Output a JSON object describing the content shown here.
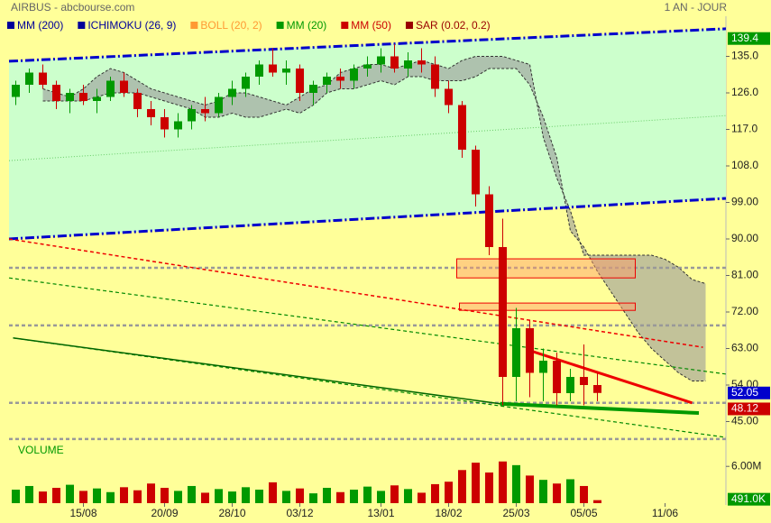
{
  "chart_data": {
    "type": "candlestick",
    "title": "AIRBUS - abcbourse.com",
    "period": "1 AN - JOUR",
    "indicators": [
      {
        "name": "MM (200)",
        "color": "#000099"
      },
      {
        "name": "ICHIMOKU (26, 9)",
        "color": "#000099"
      },
      {
        "name": "BOLL (20, 2)",
        "color": "#ff9933"
      },
      {
        "name": "MM (20)",
        "color": "#009900"
      },
      {
        "name": "MM (50)",
        "color": "#cc0000"
      },
      {
        "name": "SAR (0.02, 0.2)",
        "color": "#990000"
      }
    ],
    "categories": [
      null,
      null,
      null,
      null,
      null,
      "15/08",
      null,
      null,
      null,
      null,
      null,
      "20/09",
      null,
      null,
      null,
      null,
      "28/10",
      null,
      null,
      null,
      null,
      "03/12",
      null,
      null,
      null,
      null,
      null,
      "13/01",
      null,
      null,
      null,
      null,
      "18/02",
      null,
      null,
      null,
      null,
      "25/03",
      null,
      null,
      null,
      null,
      "05/05",
      null,
      null,
      null,
      null,
      null,
      "11/06",
      null,
      null,
      null,
      null
    ],
    "open": [
      125,
      128,
      131,
      128,
      124,
      126,
      124,
      125,
      129,
      126,
      122,
      120,
      117,
      119,
      122,
      121,
      125,
      127,
      130,
      133,
      131,
      132,
      126,
      128,
      130,
      129,
      132,
      133,
      135,
      132,
      134,
      133,
      127,
      123,
      112,
      101,
      88,
      56,
      68,
      57,
      60,
      52,
      56,
      54,
      null,
      null,
      null,
      null,
      null,
      null,
      null,
      null,
      null
    ],
    "high": [
      129,
      132,
      133,
      129,
      127,
      128,
      127,
      130,
      131,
      127,
      124,
      122,
      121,
      123,
      125,
      126,
      129,
      131,
      134,
      137,
      134,
      133,
      129,
      131,
      132,
      133,
      135,
      137,
      138,
      136,
      137,
      135,
      129,
      124,
      113,
      103,
      95,
      73,
      70,
      63,
      62,
      58,
      64,
      57,
      null,
      null,
      null,
      null,
      null,
      null,
      null,
      null,
      null
    ],
    "low": [
      123,
      126,
      127,
      122,
      121,
      123,
      121,
      124,
      125,
      120,
      118,
      115,
      115,
      117,
      119,
      120,
      123,
      125,
      128,
      130,
      128,
      124,
      123,
      126,
      127,
      127,
      130,
      131,
      131,
      130,
      131,
      125,
      121,
      110,
      98,
      86,
      49,
      50,
      51,
      50,
      49,
      50,
      49,
      50,
      null,
      null,
      null,
      null,
      null,
      null,
      null,
      null,
      null
    ],
    "close": [
      128,
      131,
      128,
      124,
      126,
      124,
      125,
      129,
      126,
      122,
      120,
      117,
      119,
      122,
      121,
      125,
      127,
      130,
      133,
      131,
      132,
      126,
      128,
      130,
      129,
      132,
      133,
      135,
      132,
      134,
      133,
      127,
      123,
      112,
      101,
      88,
      56,
      68,
      57,
      60,
      52,
      56,
      54,
      52.05,
      null,
      null,
      null,
      null,
      null,
      null,
      null,
      null,
      null
    ],
    "up_color": "#009900",
    "down_color": "#cc0000",
    "span_a": [
      null,
      null,
      127,
      126,
      125,
      127,
      130,
      132,
      131,
      129,
      127,
      126,
      125,
      124,
      123,
      124,
      126,
      126,
      125,
      124,
      123,
      125,
      127,
      128,
      131,
      132,
      133,
      133,
      132,
      133,
      134,
      133,
      132,
      134,
      135,
      135,
      135,
      134,
      133,
      115,
      105,
      97,
      86,
      86,
      86,
      86,
      86,
      86,
      85,
      83,
      80,
      79,
      null
    ],
    "span_b": [
      null,
      null,
      124,
      124,
      124,
      124,
      125,
      126,
      126,
      126,
      125,
      124,
      123,
      122,
      120,
      120,
      121,
      120,
      120,
      121,
      122,
      121,
      123,
      126,
      127,
      127,
      128,
      129,
      128,
      130,
      130,
      129,
      129,
      129,
      130,
      132,
      132,
      132,
      128,
      120,
      110,
      92,
      88,
      82,
      77,
      72,
      67,
      63,
      60,
      57,
      55,
      55,
      null
    ],
    "cloud_color": "#999999",
    "trend_lines": [
      {
        "color": "#0000cc",
        "style": "dashdot",
        "width": 3,
        "x": [
          -0.5,
          52.5
        ],
        "values": [
          133.8,
          141.8
        ]
      },
      {
        "color": "#0000cc",
        "style": "dashdot",
        "width": 3,
        "x": [
          -0.5,
          52.5
        ],
        "values": [
          90,
          100
        ]
      },
      {
        "color": "#66cc66",
        "style": "dotted",
        "width": 1,
        "x": [
          -0.5,
          52.5
        ],
        "values": [
          109.3,
          120.4
        ]
      },
      {
        "color": "#ee0000",
        "style": "dashed",
        "width": 1.5,
        "x": [
          -0.5,
          50.8
        ],
        "values": [
          90,
          63.3
        ]
      },
      {
        "color": "#008800",
        "style": "dashed",
        "width": 1.2,
        "x": [
          -0.5,
          52.5
        ],
        "values": [
          80.4,
          56.7
        ]
      },
      {
        "color": "#008800",
        "style": "dashed",
        "width": 1.2,
        "x": [
          -0.2,
          52.5
        ],
        "values": [
          65.6,
          41.1
        ]
      },
      {
        "color": "#006600",
        "style": "solid",
        "width": 1.5,
        "x": [
          -0.2,
          35.8
        ],
        "values": [
          65.6,
          49.4
        ]
      },
      {
        "color": "#009900",
        "style": "solid",
        "width": 4,
        "x": [
          35.8,
          50.5
        ],
        "values": [
          49.4,
          47.1
        ]
      },
      {
        "color": "#ee0000",
        "style": "solid",
        "width": 3,
        "x": [
          37.8,
          50
        ],
        "values": [
          62.7,
          49.6
        ]
      }
    ],
    "channel_color": "#ccffcc",
    "levels": [
      82.9,
      68.7,
      49.6,
      40.7
    ],
    "zones": [
      {
        "x": [
          32.6,
          45.8
        ],
        "values": [
          80.4,
          85.1
        ]
      },
      {
        "x": [
          32.8,
          45.8
        ],
        "values": [
          72.4,
          74.2
        ]
      }
    ],
    "ylim": [
      40,
      144
    ],
    "yticks": [
      {
        "value": 45,
        "label": "45.00"
      },
      {
        "value": 54,
        "label": "54.00"
      },
      {
        "value": 63,
        "label": "63.00"
      },
      {
        "value": 72,
        "label": "72.00"
      },
      {
        "value": 81,
        "label": "81.00"
      },
      {
        "value": 90,
        "label": "90.00"
      },
      {
        "value": 99,
        "label": "99.00"
      },
      {
        "value": 108,
        "label": "108.0"
      },
      {
        "value": 117,
        "label": "117.0"
      },
      {
        "value": 126,
        "label": "126.0"
      },
      {
        "value": 135,
        "label": "135.0"
      }
    ],
    "price_markers": [
      {
        "value": 139.4,
        "color": "#009900"
      },
      {
        "value": 52.05,
        "color": "#0000cc"
      },
      {
        "value": 48.12,
        "color": "#cc0000"
      }
    ],
    "volume_title": "VOLUME",
    "volume": [
      2200000,
      2800000,
      1900000,
      2500000,
      3000000,
      2000000,
      2400000,
      1800000,
      2600000,
      2100000,
      3200000,
      2500000,
      2000000,
      2800000,
      1700000,
      2300000,
      1900000,
      2600000,
      2200000,
      3400000,
      2000000,
      2400000,
      1600000,
      2500000,
      1800000,
      2200000,
      2700000,
      2000000,
      2900000,
      2300000,
      1700000,
      3100000,
      3500000,
      5400000,
      6600000,
      5000000,
      6800000,
      6200000,
      4500000,
      3800000,
      3200000,
      3900000,
      2800000,
      491000,
      null,
      null,
      null,
      null,
      null,
      null,
      null,
      null,
      null
    ],
    "vlim": [
      0,
      10000000
    ],
    "vticks": [
      {
        "value": 6000000,
        "label": "6.00M"
      }
    ],
    "last_volume": {
      "value": 491000,
      "label": "491.0K"
    }
  }
}
